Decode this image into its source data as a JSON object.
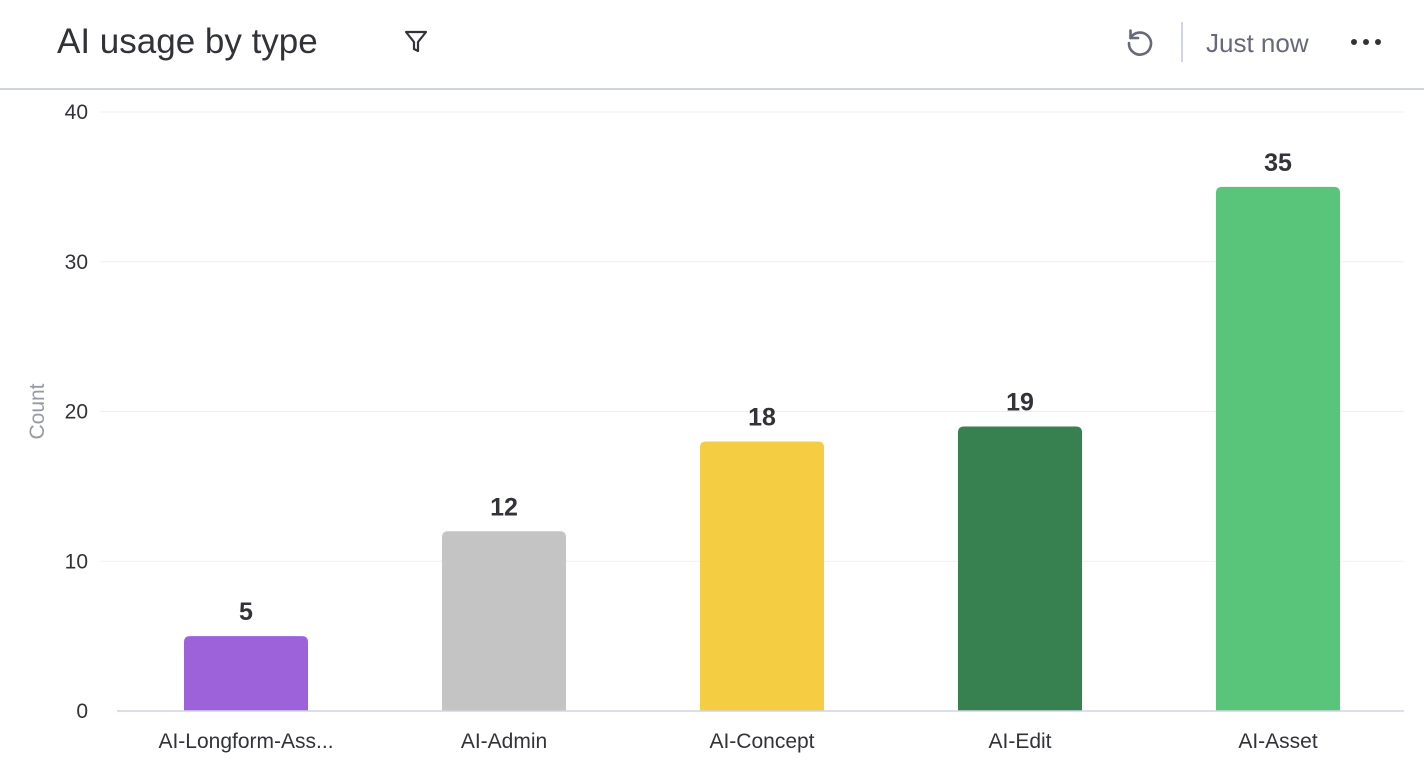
{
  "header": {
    "title": "AI usage by type",
    "updated_label": "Just now",
    "icons": {
      "filter": "filter-icon",
      "refresh": "refresh-icon",
      "more": "more-horizontal-icon"
    }
  },
  "chart_data": {
    "type": "bar",
    "categories": [
      "AI-Longform-Ass...",
      "AI-Admin",
      "AI-Concept",
      "AI-Edit",
      "AI-Asset"
    ],
    "values": [
      5,
      12,
      18,
      19,
      35
    ],
    "colors": [
      "#9d62d9",
      "#c4c4c4",
      "#f5cd42",
      "#378050",
      "#59c57b"
    ],
    "xlabel": "",
    "ylabel": "Count",
    "ylim": [
      0,
      40
    ],
    "yticks": [
      0,
      10,
      20,
      30,
      40
    ],
    "grid": true,
    "legend": "none"
  }
}
